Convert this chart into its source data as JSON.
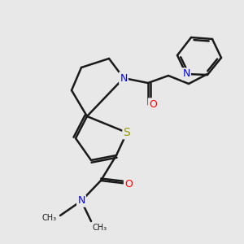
{
  "bg_color": "#e8e8e8",
  "bond_color": "#1a1a1a",
  "bond_lw": 1.8,
  "atom_colors": {
    "N": "#0000ff",
    "O": "#ff0000",
    "S": "#999900",
    "C": "#1a1a1a"
  },
  "font_size": 9,
  "font_size_small": 8
}
